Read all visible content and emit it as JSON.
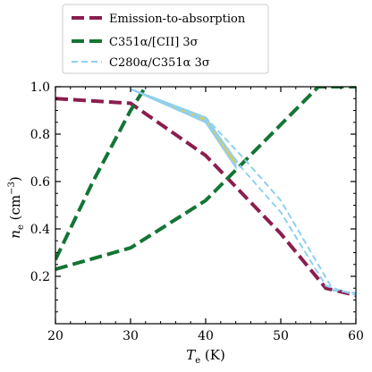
{
  "chart_data": {
    "type": "line",
    "xlabel": "T_e (K)",
    "ylabel": "n_e (cm^-3)",
    "xlim": [
      20,
      60
    ],
    "ylim": [
      0,
      1.0
    ],
    "xticks": [
      20,
      30,
      40,
      50,
      60
    ],
    "yticks": [
      0.2,
      0.4,
      0.6,
      0.8,
      1.0
    ],
    "xtick_labels": [
      "20",
      "30",
      "40",
      "50",
      "60"
    ],
    "ytick_labels": [
      "0.2",
      "0.4",
      "0.6",
      "0.8",
      "1.0"
    ],
    "grid": false,
    "legend_position": "top-left, above plot",
    "series": [
      {
        "name": "Emission-to-absorption",
        "color": "#8B1E4E",
        "style": "dashed-thick",
        "x": [
          20,
          30,
          40,
          50,
          56,
          60
        ],
        "y": [
          0.95,
          0.93,
          0.71,
          0.38,
          0.15,
          0.12
        ]
      },
      {
        "name": "C351α/[CII] 3σ",
        "color": "#137534",
        "style": "dashed-thick",
        "x": [
          20,
          30,
          40,
          50,
          55,
          60
        ],
        "y": [
          0.23,
          0.32,
          0.52,
          0.84,
          1.0,
          1.0
        ]
      },
      {
        "name": "C351α/[CII] 3σ",
        "color": "#137534",
        "style": "dashed-thick",
        "x": [
          20,
          25,
          30,
          32
        ],
        "y": [
          0.27,
          0.6,
          0.9,
          1.0
        ]
      },
      {
        "name": "C280α/C351α 3σ",
        "color": "#8ED0F0",
        "style": "dashed-thin",
        "x": [
          30,
          40,
          45,
          50,
          57,
          60
        ],
        "y": [
          0.99,
          0.87,
          0.7,
          0.52,
          0.14,
          0.13
        ]
      },
      {
        "name": "C280α/C351α 3σ",
        "color": "#8ED0F0",
        "style": "dashed-thin",
        "x": [
          30,
          40,
          45,
          50,
          56,
          60
        ],
        "y": [
          0.99,
          0.86,
          0.65,
          0.47,
          0.16,
          0.12
        ]
      }
    ],
    "shaded_region": {
      "color": "#E8C84A",
      "edge_color": "#8ED0F0",
      "x": [
        30,
        40,
        44
      ],
      "y_top": [
        0.99,
        0.87,
        0.69
      ],
      "y_bottom": [
        0.99,
        0.85,
        0.66
      ]
    },
    "legend": [
      {
        "label": "Emission-to-absorption",
        "color": "#8B1E4E",
        "style": "dashed-thick"
      },
      {
        "label": "C351α/[CII] 3σ",
        "color": "#137534",
        "style": "dashed-thick"
      },
      {
        "label": "C280α/C351α 3σ",
        "color": "#8ED0F0",
        "style": "dashed-thin"
      }
    ]
  }
}
